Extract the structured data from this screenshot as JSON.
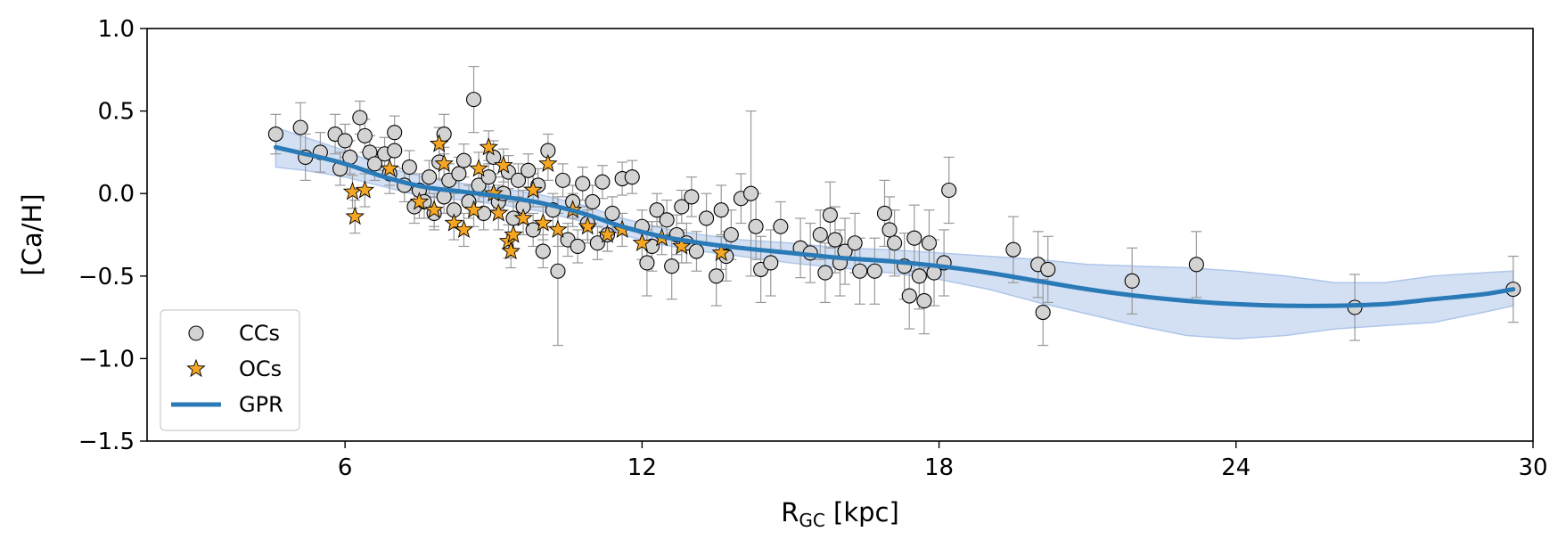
{
  "chart_data": {
    "type": "scatter",
    "xlabel_main": "R",
    "xlabel_sub": "GC",
    "xlabel_unit": " [kpc]",
    "ylabel": "[Ca/H]",
    "xlim": [
      2,
      30
    ],
    "ylim": [
      -1.5,
      1.0
    ],
    "xticks": [
      6,
      12,
      18,
      24,
      30
    ],
    "yticks": [
      1.0,
      0.5,
      0.0,
      -0.5,
      -1.0,
      -1.5
    ],
    "xtick_labels": [
      "6",
      "12",
      "18",
      "24",
      "30"
    ],
    "ytick_labels": [
      "1.0",
      "0.5",
      "0.0",
      "−0.5",
      "−1.0",
      "−1.5"
    ],
    "grid": false,
    "legend_position": "lower-left",
    "colors": {
      "cc_fill": "#d3d3d3",
      "oc_fill": "#f5a623",
      "gpr_line": "#2a7ab8",
      "gpr_band": "#aec6ea",
      "errorbar": "#999999"
    },
    "series": [
      {
        "name": "CCs",
        "marker": "circle",
        "points": [
          [
            4.6,
            0.36,
            0.12
          ],
          [
            5.1,
            0.4,
            0.15
          ],
          [
            5.2,
            0.22,
            0.14
          ],
          [
            5.5,
            0.25,
            0.12
          ],
          [
            5.8,
            0.36,
            0.12
          ],
          [
            6.0,
            0.32,
            0.1
          ],
          [
            6.1,
            0.22,
            0.1
          ],
          [
            5.9,
            0.15,
            0.1
          ],
          [
            6.3,
            0.46,
            0.1
          ],
          [
            6.4,
            0.35,
            0.1
          ],
          [
            6.5,
            0.25,
            0.1
          ],
          [
            6.6,
            0.18,
            0.1
          ],
          [
            6.8,
            0.24,
            0.1
          ],
          [
            6.9,
            0.12,
            0.12
          ],
          [
            7.0,
            0.37,
            0.1
          ],
          [
            7.0,
            0.26,
            0.1
          ],
          [
            7.2,
            0.05,
            0.1
          ],
          [
            7.3,
            0.16,
            0.1
          ],
          [
            7.4,
            -0.08,
            0.1
          ],
          [
            7.5,
            0.02,
            0.1
          ],
          [
            7.6,
            -0.05,
            0.1
          ],
          [
            7.7,
            0.1,
            0.1
          ],
          [
            7.8,
            -0.12,
            0.1
          ],
          [
            7.9,
            0.19,
            0.1
          ],
          [
            8.0,
            0.36,
            0.12
          ],
          [
            8.0,
            -0.02,
            0.1
          ],
          [
            8.1,
            0.08,
            0.1
          ],
          [
            8.2,
            -0.1,
            0.1
          ],
          [
            8.3,
            0.12,
            0.1
          ],
          [
            8.4,
            0.2,
            0.1
          ],
          [
            8.5,
            -0.05,
            0.1
          ],
          [
            8.6,
            0.57,
            0.2
          ],
          [
            8.7,
            0.05,
            0.1
          ],
          [
            8.8,
            -0.12,
            0.1
          ],
          [
            8.9,
            0.1,
            0.1
          ],
          [
            9.0,
            0.22,
            0.1
          ],
          [
            9.1,
            -0.05,
            0.1
          ],
          [
            9.2,
            0.0,
            0.1
          ],
          [
            9.3,
            0.13,
            0.1
          ],
          [
            9.4,
            -0.15,
            0.1
          ],
          [
            9.5,
            0.08,
            0.1
          ],
          [
            9.6,
            -0.08,
            0.1
          ],
          [
            9.7,
            0.14,
            0.1
          ],
          [
            9.8,
            -0.22,
            0.1
          ],
          [
            9.9,
            0.05,
            0.1
          ],
          [
            10.0,
            -0.35,
            0.1
          ],
          [
            10.1,
            0.26,
            0.1
          ],
          [
            10.2,
            -0.1,
            0.1
          ],
          [
            10.3,
            -0.47,
            0.45
          ],
          [
            10.4,
            0.08,
            0.1
          ],
          [
            10.5,
            -0.28,
            0.1
          ],
          [
            10.6,
            -0.05,
            0.1
          ],
          [
            10.7,
            -0.32,
            0.1
          ],
          [
            10.8,
            0.06,
            0.1
          ],
          [
            10.9,
            -0.18,
            0.1
          ],
          [
            11.0,
            -0.05,
            0.1
          ],
          [
            11.1,
            -0.3,
            0.1
          ],
          [
            11.2,
            0.07,
            0.1
          ],
          [
            11.3,
            -0.25,
            0.1
          ],
          [
            11.4,
            -0.12,
            0.1
          ],
          [
            11.6,
            0.09,
            0.1
          ],
          [
            11.8,
            0.1,
            0.1
          ],
          [
            12.0,
            -0.2,
            0.1
          ],
          [
            12.1,
            -0.42,
            0.2
          ],
          [
            12.2,
            -0.32,
            0.15
          ],
          [
            12.3,
            -0.1,
            0.1
          ],
          [
            12.5,
            -0.16,
            0.12
          ],
          [
            12.6,
            -0.44,
            0.2
          ],
          [
            12.7,
            -0.25,
            0.12
          ],
          [
            12.8,
            -0.08,
            0.1
          ],
          [
            12.9,
            -0.3,
            0.12
          ],
          [
            13.0,
            -0.02,
            0.12
          ],
          [
            13.1,
            -0.35,
            0.12
          ],
          [
            13.3,
            -0.15,
            0.15
          ],
          [
            13.5,
            -0.5,
            0.18
          ],
          [
            13.6,
            -0.1,
            0.15
          ],
          [
            13.7,
            -0.38,
            0.15
          ],
          [
            13.8,
            -0.25,
            0.15
          ],
          [
            14.0,
            -0.03,
            0.15
          ],
          [
            14.2,
            0.0,
            0.5
          ],
          [
            14.3,
            -0.2,
            0.2
          ],
          [
            14.4,
            -0.46,
            0.2
          ],
          [
            14.6,
            -0.42,
            0.2
          ],
          [
            14.8,
            -0.2,
            0.15
          ],
          [
            15.2,
            -0.33,
            0.18
          ],
          [
            15.4,
            -0.36,
            0.18
          ],
          [
            15.6,
            -0.25,
            0.15
          ],
          [
            15.7,
            -0.48,
            0.18
          ],
          [
            15.8,
            -0.13,
            0.2
          ],
          [
            15.9,
            -0.28,
            0.2
          ],
          [
            16.0,
            -0.42,
            0.2
          ],
          [
            16.1,
            -0.35,
            0.2
          ],
          [
            16.3,
            -0.3,
            0.18
          ],
          [
            16.4,
            -0.47,
            0.2
          ],
          [
            16.7,
            -0.47,
            0.2
          ],
          [
            16.9,
            -0.12,
            0.2
          ],
          [
            17.0,
            -0.22,
            0.2
          ],
          [
            17.1,
            -0.3,
            0.2
          ],
          [
            17.3,
            -0.44,
            0.2
          ],
          [
            17.4,
            -0.62,
            0.2
          ],
          [
            17.5,
            -0.27,
            0.2
          ],
          [
            17.6,
            -0.5,
            0.2
          ],
          [
            17.7,
            -0.65,
            0.2
          ],
          [
            17.8,
            -0.3,
            0.2
          ],
          [
            17.9,
            -0.48,
            0.2
          ],
          [
            18.1,
            -0.42,
            0.2
          ],
          [
            18.2,
            0.02,
            0.2
          ],
          [
            19.5,
            -0.34,
            0.2
          ],
          [
            20.0,
            -0.43,
            0.2
          ],
          [
            20.1,
            -0.72,
            0.2
          ],
          [
            20.2,
            -0.46,
            0.2
          ],
          [
            21.9,
            -0.53,
            0.2
          ],
          [
            23.2,
            -0.43,
            0.2
          ],
          [
            26.4,
            -0.69,
            0.2
          ],
          [
            29.6,
            -0.58,
            0.2
          ]
        ]
      },
      {
        "name": "OCs",
        "marker": "star",
        "points": [
          [
            6.15,
            0.01,
            0.1
          ],
          [
            6.2,
            -0.14,
            0.1
          ],
          [
            6.4,
            0.02,
            0.1
          ],
          [
            6.9,
            0.15,
            0.1
          ],
          [
            7.5,
            -0.05,
            0.1
          ],
          [
            7.8,
            -0.1,
            0.1
          ],
          [
            7.9,
            0.3,
            0.1
          ],
          [
            8.0,
            0.18,
            0.1
          ],
          [
            8.2,
            -0.18,
            0.1
          ],
          [
            8.4,
            -0.22,
            0.1
          ],
          [
            8.6,
            -0.1,
            0.1
          ],
          [
            8.7,
            0.15,
            0.1
          ],
          [
            8.9,
            0.28,
            0.1
          ],
          [
            9.0,
            0.0,
            0.1
          ],
          [
            9.1,
            -0.12,
            0.1
          ],
          [
            9.2,
            0.17,
            0.1
          ],
          [
            9.3,
            -0.29,
            0.1
          ],
          [
            9.35,
            -0.35,
            0.1
          ],
          [
            9.4,
            -0.25,
            0.1
          ],
          [
            9.6,
            -0.15,
            0.1
          ],
          [
            9.8,
            0.02,
            0.1
          ],
          [
            10.0,
            -0.18,
            0.1
          ],
          [
            10.1,
            0.18,
            0.1
          ],
          [
            10.3,
            -0.22,
            0.1
          ],
          [
            10.6,
            -0.1,
            0.1
          ],
          [
            10.9,
            -0.2,
            0.1
          ],
          [
            11.3,
            -0.25,
            0.1
          ],
          [
            11.6,
            -0.22,
            0.1
          ],
          [
            12.0,
            -0.3,
            0.1
          ],
          [
            12.4,
            -0.27,
            0.1
          ],
          [
            12.8,
            -0.32,
            0.1
          ],
          [
            13.6,
            -0.36,
            0.1
          ]
        ]
      },
      {
        "name": "GPR",
        "type": "line",
        "x": [
          4.6,
          5.2,
          6.0,
          6.8,
          7.6,
          8.4,
          9.2,
          10.0,
          10.8,
          11.6,
          12.4,
          13.2,
          14.0,
          15.0,
          16.0,
          17.0,
          18.0,
          19.0,
          20.0,
          21.0,
          22.0,
          23.0,
          24.0,
          25.0,
          26.0,
          27.0,
          28.0,
          29.0,
          29.6
        ],
        "y": [
          0.28,
          0.24,
          0.18,
          0.1,
          0.04,
          0.01,
          -0.02,
          -0.06,
          -0.12,
          -0.2,
          -0.26,
          -0.3,
          -0.33,
          -0.36,
          -0.39,
          -0.41,
          -0.44,
          -0.48,
          -0.53,
          -0.58,
          -0.62,
          -0.65,
          -0.67,
          -0.68,
          -0.68,
          -0.67,
          -0.64,
          -0.61,
          -0.58
        ],
        "band_lower": [
          0.16,
          0.14,
          0.1,
          0.04,
          -0.02,
          -0.04,
          -0.07,
          -0.11,
          -0.17,
          -0.25,
          -0.31,
          -0.35,
          -0.38,
          -0.42,
          -0.45,
          -0.48,
          -0.52,
          -0.58,
          -0.66,
          -0.73,
          -0.8,
          -0.86,
          -0.88,
          -0.86,
          -0.82,
          -0.8,
          -0.78,
          -0.72,
          -0.68
        ],
        "band_upper": [
          0.4,
          0.34,
          0.26,
          0.16,
          0.1,
          0.06,
          0.03,
          -0.01,
          -0.07,
          -0.15,
          -0.21,
          -0.25,
          -0.28,
          -0.3,
          -0.33,
          -0.34,
          -0.36,
          -0.38,
          -0.4,
          -0.43,
          -0.44,
          -0.45,
          -0.47,
          -0.5,
          -0.54,
          -0.54,
          -0.5,
          -0.48,
          -0.47
        ]
      }
    ],
    "legend": [
      {
        "label": "CCs",
        "marker": "circle"
      },
      {
        "label": "OCs",
        "marker": "star"
      },
      {
        "label": "GPR",
        "marker": "line"
      }
    ]
  }
}
